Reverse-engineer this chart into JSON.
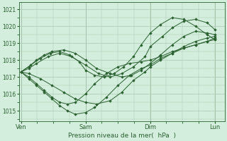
{
  "bg_color": "#d4eedd",
  "grid_color": "#a8c8b0",
  "line_color": "#2a6030",
  "marker_color": "#2a6030",
  "xlabel": "Pression niveau de la mer(  hPa  )",
  "xlabel_color": "#2a6030",
  "yticks": [
    1015,
    1016,
    1017,
    1018,
    1019,
    1020,
    1021
  ],
  "xtick_labels": [
    "Ven",
    "Sam",
    "Dim",
    "Lun"
  ],
  "xtick_positions": [
    0,
    0.333,
    0.667,
    1.0
  ],
  "ylim": [
    1014.4,
    1021.4
  ],
  "xlim": [
    -0.01,
    1.05
  ],
  "series": [
    {
      "x": [
        0.0,
        0.04,
        0.08,
        0.12,
        0.16,
        0.2,
        0.24,
        0.28,
        0.333,
        0.38,
        0.44,
        0.5,
        0.56,
        0.62,
        0.667,
        0.72,
        0.78,
        0.84,
        0.9,
        0.96,
        1.0
      ],
      "y": [
        1017.3,
        1016.9,
        1016.5,
        1016.1,
        1015.7,
        1015.3,
        1015.0,
        1014.8,
        1014.9,
        1015.2,
        1015.8,
        1016.5,
        1017.1,
        1017.5,
        1017.7,
        1018.1,
        1018.4,
        1018.7,
        1018.9,
        1019.1,
        1019.3
      ]
    },
    {
      "x": [
        0.0,
        0.04,
        0.08,
        0.12,
        0.16,
        0.2,
        0.24,
        0.28,
        0.333,
        0.38,
        0.44,
        0.5,
        0.56,
        0.62,
        0.667,
        0.72,
        0.78,
        0.84,
        0.9,
        0.96,
        1.0
      ],
      "y": [
        1017.3,
        1017.0,
        1016.6,
        1016.2,
        1015.8,
        1015.5,
        1015.4,
        1015.5,
        1016.0,
        1016.6,
        1017.2,
        1017.6,
        1017.8,
        1017.9,
        1018.0,
        1018.2,
        1018.5,
        1018.7,
        1018.9,
        1019.1,
        1019.2
      ]
    },
    {
      "x": [
        0.0,
        0.04,
        0.08,
        0.14,
        0.2,
        0.26,
        0.333,
        0.4,
        0.46,
        0.52,
        0.58,
        0.64,
        0.667,
        0.73,
        0.78,
        0.84,
        0.9,
        0.96,
        1.0
      ],
      "y": [
        1017.3,
        1017.5,
        1017.8,
        1018.2,
        1018.4,
        1018.2,
        1017.7,
        1017.2,
        1017.0,
        1017.2,
        1017.6,
        1018.2,
        1018.8,
        1019.4,
        1019.9,
        1020.3,
        1020.4,
        1020.2,
        1019.8
      ]
    },
    {
      "x": [
        0.0,
        0.05,
        0.1,
        0.15,
        0.2,
        0.25,
        0.3,
        0.333,
        0.38,
        0.43,
        0.48,
        0.53,
        0.58,
        0.62,
        0.667,
        0.72,
        0.78,
        0.84,
        0.9,
        0.96,
        1.0
      ],
      "y": [
        1017.3,
        1017.7,
        1018.1,
        1018.4,
        1018.5,
        1018.3,
        1017.9,
        1017.4,
        1017.1,
        1017.0,
        1017.2,
        1017.6,
        1018.2,
        1018.9,
        1019.6,
        1020.1,
        1020.5,
        1020.4,
        1020.0,
        1019.5,
        1019.2
      ]
    },
    {
      "x": [
        0.0,
        0.04,
        0.08,
        0.12,
        0.16,
        0.22,
        0.28,
        0.333,
        0.39,
        0.46,
        0.52,
        0.57,
        0.62,
        0.667,
        0.72,
        0.78,
        0.84,
        0.9,
        0.96,
        1.0
      ],
      "y": [
        1017.3,
        1017.6,
        1018.0,
        1018.3,
        1018.5,
        1018.6,
        1018.4,
        1018.0,
        1017.5,
        1017.2,
        1017.0,
        1017.1,
        1017.4,
        1017.8,
        1018.3,
        1018.9,
        1019.4,
        1019.7,
        1019.6,
        1019.5
      ]
    },
    {
      "x": [
        0.0,
        0.04,
        0.1,
        0.16,
        0.22,
        0.28,
        0.333,
        0.39,
        0.46,
        0.52,
        0.58,
        0.64,
        0.667,
        0.72,
        0.78,
        0.84,
        0.9,
        0.96,
        1.0
      ],
      "y": [
        1017.3,
        1017.2,
        1016.9,
        1016.5,
        1016.1,
        1015.7,
        1015.5,
        1015.4,
        1015.6,
        1016.1,
        1016.8,
        1017.3,
        1017.6,
        1018.0,
        1018.4,
        1018.8,
        1019.1,
        1019.3,
        1019.4
      ]
    }
  ]
}
